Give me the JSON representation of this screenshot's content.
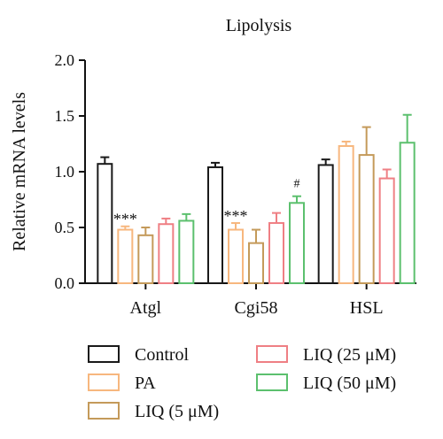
{
  "chart_data": {
    "type": "bar",
    "title": "Lipolysis",
    "xlabel": "",
    "ylabel": "Relative mRNA levels",
    "ylim": [
      0,
      2.0
    ],
    "yticks": [
      "0.0",
      "0.5",
      "1.0",
      "1.5",
      "2.0"
    ],
    "categories": [
      "Atgl",
      "Cgi58",
      "HSL"
    ],
    "series": [
      {
        "name": "Control",
        "color": "#1a1a1a",
        "values": [
          1.07,
          1.04,
          1.06
        ],
        "errors": [
          0.06,
          0.04,
          0.05
        ]
      },
      {
        "name": "PA",
        "color": "#f7b77e",
        "values": [
          0.48,
          0.48,
          1.23
        ],
        "errors": [
          0.03,
          0.06,
          0.04
        ]
      },
      {
        "name": "LIQ (5 μM)",
        "color": "#c49a5a",
        "values": [
          0.43,
          0.36,
          1.15
        ],
        "errors": [
          0.07,
          0.12,
          0.25
        ]
      },
      {
        "name": "LIQ (25 μM)",
        "color": "#ef7f84",
        "values": [
          0.53,
          0.54,
          0.94
        ],
        "errors": [
          0.05,
          0.09,
          0.08
        ]
      },
      {
        "name": "LIQ (50 μM)",
        "color": "#5cc06e",
        "values": [
          0.56,
          0.72,
          1.26
        ],
        "errors": [
          0.06,
          0.06,
          0.25
        ]
      }
    ],
    "annotations": [
      {
        "text": "***",
        "category": "Atgl",
        "series": "PA"
      },
      {
        "text": "***",
        "category": "Cgi58",
        "series": "PA"
      },
      {
        "text": "#",
        "category": "Cgi58",
        "series": "LIQ (50 μM)"
      }
    ],
    "legend_position": "bottom"
  }
}
